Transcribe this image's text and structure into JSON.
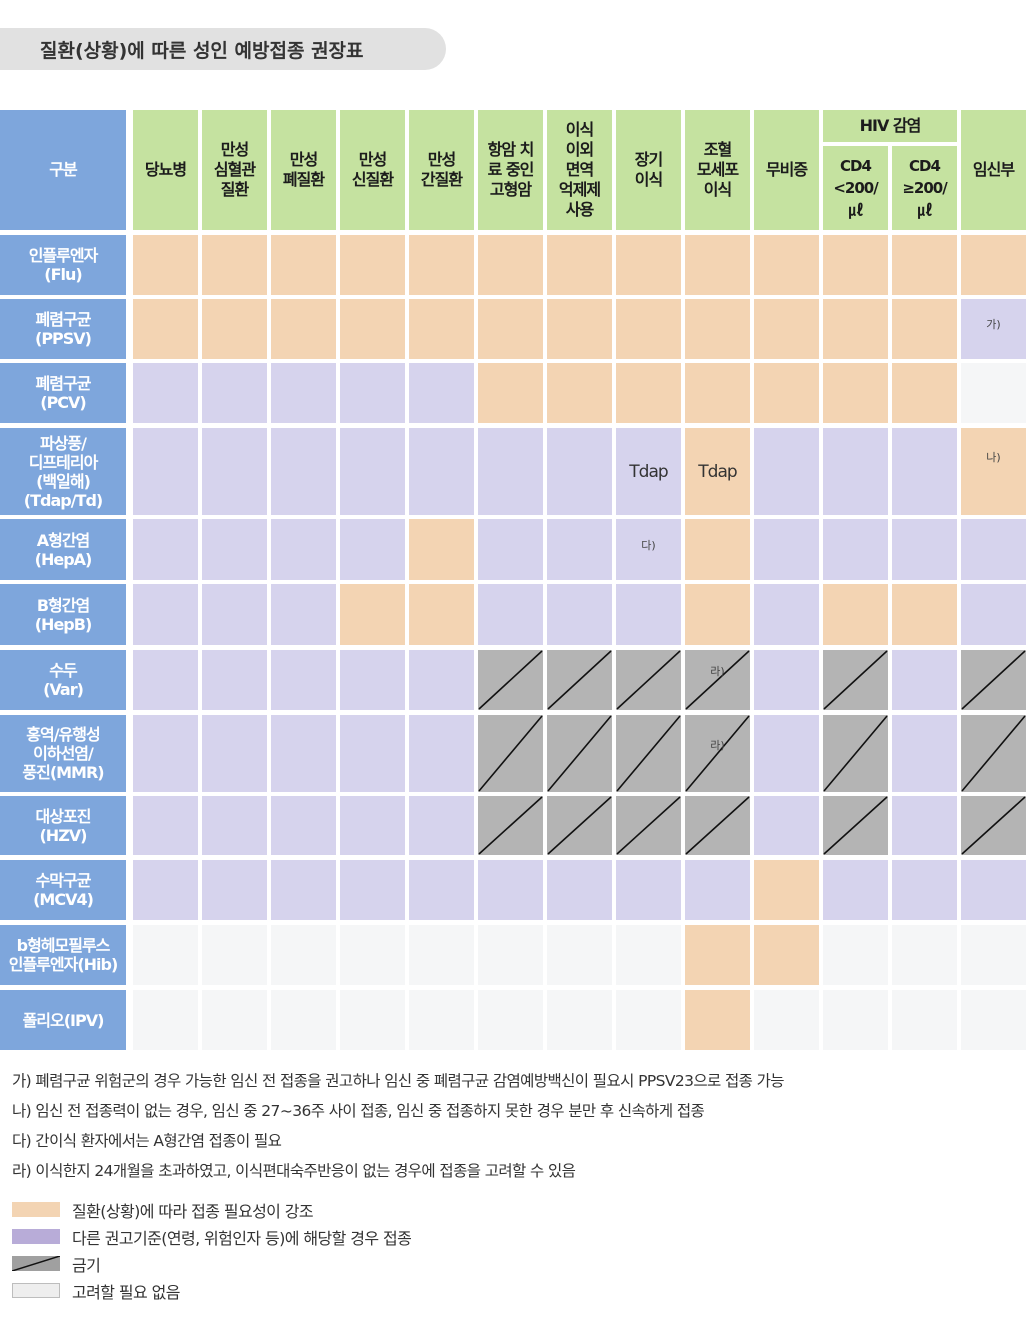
{
  "title": "질환(상황)에 따른 성인 예방접종 권장표",
  "colors": {
    "orange": "#f3d4b3",
    "purple": "#d6d3ed",
    "gray": "#b4b4b4",
    "white": "#f5f6f7",
    "header_green": "#c5e2a0",
    "header_blue": "#7ea6dc"
  },
  "table": {
    "corner": "구분",
    "hiv_group": "HIV 감염",
    "columns": [
      "당뇨병",
      "만성\n심혈관\n질환",
      "만성\n폐질환",
      "만성\n신질환",
      "만성\n간질환",
      "항암 치\n료 중인\n고형암",
      "이식\n이외\n면역\n억제제\n사용",
      "장기\n이식",
      "조혈\n모세포\n이식",
      "무비증",
      "CD4\n<200/\n㎕",
      "CD4\n≥200/\n㎕",
      "임신부"
    ],
    "rows": [
      {
        "label": "인플루엔자\n(Flu)",
        "cells": [
          "o",
          "o",
          "o",
          "o",
          "o",
          "o",
          "o",
          "o",
          "o",
          "o",
          "o",
          "o",
          "o"
        ],
        "notes": {}
      },
      {
        "label": "폐렴구균\n(PPSV)",
        "cells": [
          "o",
          "o",
          "o",
          "o",
          "o",
          "o",
          "o",
          "o",
          "o",
          "o",
          "o",
          "o",
          "p"
        ],
        "notes": {
          "12": "가)"
        }
      },
      {
        "label": "폐렴구균\n(PCV)",
        "cells": [
          "p",
          "p",
          "p",
          "p",
          "p",
          "o",
          "o",
          "o",
          "o",
          "o",
          "o",
          "o",
          "w"
        ],
        "notes": {}
      },
      {
        "label": "파상풍/\n디프테리아\n(백일해)\n(Tdap/Td)",
        "cells": [
          "p",
          "p",
          "p",
          "p",
          "p",
          "p",
          "p",
          "p",
          "o",
          "p",
          "p",
          "p",
          "o"
        ],
        "notes": {
          "7": "Tdap",
          "8": "Tdap",
          "12": "나)"
        }
      },
      {
        "label": "A형간염\n(HepA)",
        "cells": [
          "p",
          "p",
          "p",
          "p",
          "o",
          "p",
          "p",
          "p",
          "o",
          "p",
          "p",
          "p",
          "p"
        ],
        "notes": {
          "7": "다)"
        }
      },
      {
        "label": "B형간염\n(HepB)",
        "cells": [
          "p",
          "p",
          "p",
          "o",
          "o",
          "p",
          "p",
          "p",
          "o",
          "p",
          "o",
          "o",
          "p"
        ],
        "notes": {}
      },
      {
        "label": "수두\n(Var)",
        "cells": [
          "p",
          "p",
          "p",
          "p",
          "p",
          "g",
          "g",
          "g",
          "g",
          "p",
          "g",
          "p",
          "g"
        ],
        "notes": {
          "8": "라)"
        }
      },
      {
        "label": "홍역/유행성\n이하선염/\n풍진(MMR)",
        "cells": [
          "p",
          "p",
          "p",
          "p",
          "p",
          "g",
          "g",
          "g",
          "g",
          "p",
          "g",
          "p",
          "g"
        ],
        "notes": {
          "8": "라)"
        }
      },
      {
        "label": "대상포진\n(HZV)",
        "cells": [
          "p",
          "p",
          "p",
          "p",
          "p",
          "g",
          "g",
          "g",
          "g",
          "p",
          "g",
          "p",
          "g"
        ],
        "notes": {}
      },
      {
        "label": "수막구균\n(MCV4)",
        "cells": [
          "p",
          "p",
          "p",
          "p",
          "p",
          "p",
          "p",
          "p",
          "p",
          "o",
          "p",
          "p",
          "p"
        ],
        "notes": {}
      },
      {
        "label": "b형헤모필루스\n인플루엔자(Hib)",
        "cells": [
          "w",
          "w",
          "w",
          "w",
          "w",
          "w",
          "w",
          "w",
          "o",
          "o",
          "w",
          "w",
          "w"
        ],
        "notes": {}
      },
      {
        "label": "폴리오(IPV)",
        "cells": [
          "w",
          "w",
          "w",
          "w",
          "w",
          "w",
          "w",
          "w",
          "o",
          "w",
          "w",
          "w",
          "w"
        ],
        "notes": {}
      }
    ]
  },
  "notes": [
    "가) 폐렴구균 위험군의 경우 가능한 임신 전 접종을 권고하나 임신 중 폐렴구균 감염예방백신이 필요시 PPSV23으로 접종 가능",
    "나) 임신 전 접종력이 없는 경우, 임신 중 27~36주 사이 접종, 임신 중 접종하지 못한 경우 분만 후 신속하게 접종",
    "다) 간이식 환자에서는 A형간염 접종이 필요",
    "라) 이식한지 24개월을 초과하였고, 이식편대숙주반응이 없는 경우에 접종을 고려할 수 있음"
  ],
  "legend": [
    {
      "type": "o",
      "label": "질환(상황)에 따라 접종 필요성이 강조"
    },
    {
      "type": "p",
      "label": "다른 권고기준(연령, 위험인자 등)에 해당할 경우 접종"
    },
    {
      "type": "g",
      "label": "금기"
    },
    {
      "type": "w",
      "label": "고려할 필요 없음"
    }
  ]
}
